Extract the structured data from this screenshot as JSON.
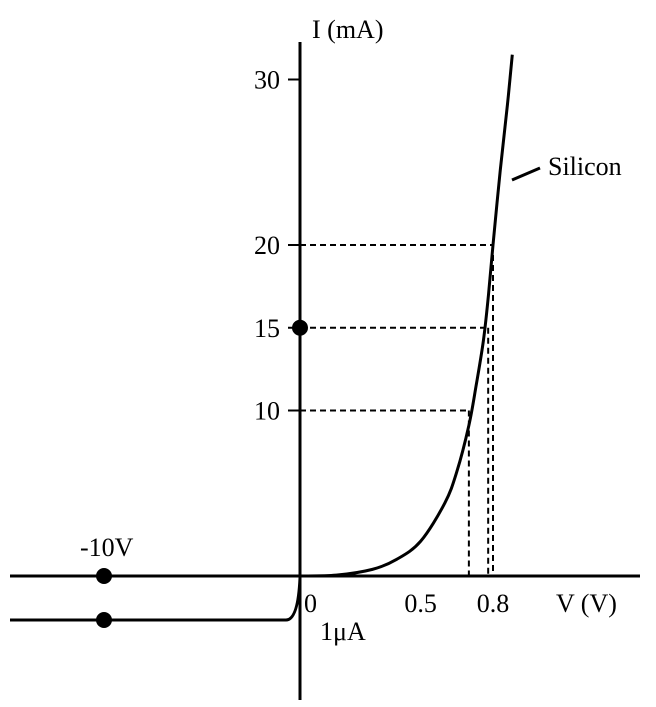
{
  "chart_data": {
    "type": "line",
    "title": "",
    "ylabel": "I (mA)",
    "xlabel": "V (V)",
    "y_ticks": [
      10,
      15,
      20,
      30
    ],
    "y_tick_labels": [
      "10",
      "15",
      "20",
      "30"
    ],
    "x_tick_labels": [
      {
        "v": 0,
        "label": "0"
      },
      {
        "v": 0.5,
        "label": "0.5"
      },
      {
        "v": 0.8,
        "label": "0.8"
      }
    ],
    "reverse_voltage_label": "-10V",
    "reverse_current_label": "1μA",
    "series": [
      {
        "name": "Silicon",
        "x": [
          0.0,
          0.15,
          0.3,
          0.4,
          0.5,
          0.6,
          0.65,
          0.7,
          0.73,
          0.76,
          0.78,
          0.8,
          0.83,
          0.86,
          0.88
        ],
        "y": [
          0.0,
          0.05,
          0.4,
          1.0,
          2.1,
          4.4,
          6.3,
          9.1,
          11.5,
          14.2,
          16.8,
          20.0,
          24.5,
          28.5,
          31.5
        ]
      }
    ],
    "reference_points": [
      {
        "x": 0.7,
        "y": 10
      },
      {
        "x": 0.78,
        "y": 15
      },
      {
        "x": 0.8,
        "y": 20
      }
    ],
    "reverse_bias": {
      "x_min": -10,
      "current": "-1μA"
    },
    "grid": false
  }
}
